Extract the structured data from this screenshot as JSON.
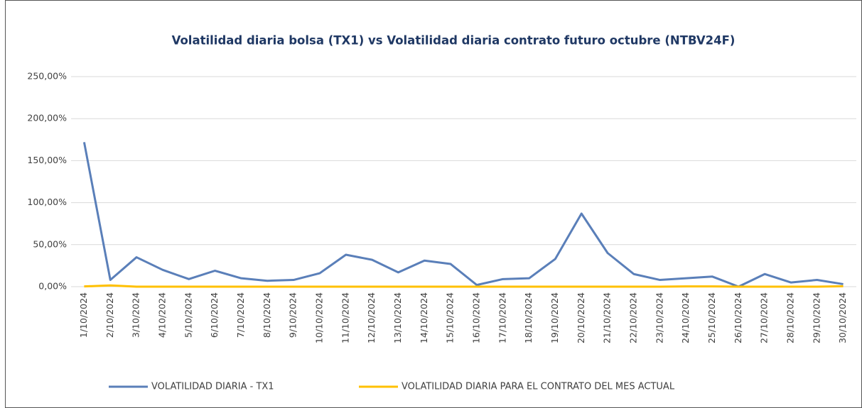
{
  "chart_data": {
    "type": "line",
    "title": "Volatilidad diaria bolsa (TX1) vs Volatilidad diaria contrato futuro octubre (NTBV24F)",
    "categories": [
      "1/10/2024",
      "2/10/2024",
      "3/10/2024",
      "4/10/2024",
      "5/10/2024",
      "6/10/2024",
      "7/10/2024",
      "8/10/2024",
      "9/10/2024",
      "10/10/2024",
      "11/10/2024",
      "12/10/2024",
      "13/10/2024",
      "14/10/2024",
      "15/10/2024",
      "16/10/2024",
      "17/10/2024",
      "18/10/2024",
      "19/10/2024",
      "20/10/2024",
      "21/10/2024",
      "22/10/2024",
      "23/10/2024",
      "24/10/2024",
      "25/10/2024",
      "26/10/2024",
      "27/10/2024",
      "28/10/2024",
      "29/10/2024",
      "30/10/2024"
    ],
    "series": [
      {
        "name": "VOLATILIDAD DIARIA - TX1",
        "color": "#5a7fb9",
        "values": [
          172,
          8,
          35,
          20,
          9,
          19,
          10,
          7,
          8,
          16,
          38,
          32,
          17,
          31,
          27,
          2,
          9,
          10,
          33,
          87,
          40,
          15,
          8,
          10,
          12,
          0,
          15,
          5,
          8,
          3
        ]
      },
      {
        "name": "VOLATILIDAD DIARIA PARA EL CONTRATO DEL MES ACTUAL",
        "color": "#ffc000",
        "values": [
          0.3,
          1.5,
          0,
          0,
          0,
          0,
          0,
          0,
          0,
          0,
          0,
          0,
          0,
          0,
          0,
          0,
          0,
          0,
          0,
          0,
          0,
          0,
          0,
          0.3,
          0.3,
          0,
          0,
          0,
          0,
          0.5
        ]
      }
    ],
    "ylim": [
      0,
      250
    ],
    "yticks": [
      {
        "value": 0,
        "label": "0,00%"
      },
      {
        "value": 50,
        "label": "50,00%"
      },
      {
        "value": 100,
        "label": "100,00%"
      },
      {
        "value": 150,
        "label": "150,00%"
      },
      {
        "value": 200,
        "label": "200,00%"
      },
      {
        "value": 250,
        "label": "250,00%"
      }
    ],
    "grid": true,
    "legend": "bottom"
  }
}
